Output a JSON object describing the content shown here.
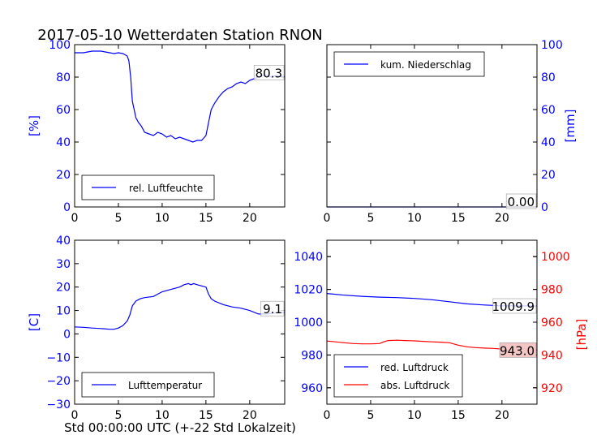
{
  "title": "2017-05-10 Wetterdaten Station RNON",
  "xlabel": "Std 00:00:00 UTC (+-22 Std Lokalzeit)",
  "colors": {
    "blue": "#0000ff",
    "red": "#ff0000",
    "label_box_red": "#f4c6c6"
  },
  "chart_data": [
    {
      "type": "line",
      "id": "humidity",
      "ylabel": "[%]",
      "ylim": [
        0,
        100
      ],
      "xlim": [
        0,
        24
      ],
      "yticks": [
        "0",
        "20",
        "40",
        "60",
        "80",
        "100"
      ],
      "xticks": [
        "0",
        "5",
        "10",
        "15",
        "20"
      ],
      "legend": "lower-left",
      "current_label": "80.3",
      "series": [
        {
          "name": "rel. Luftfeuchte",
          "color": "#0000ff",
          "x": [
            0,
            0.5,
            1,
            1.5,
            2,
            2.5,
            3,
            3.5,
            4,
            4.5,
            5,
            5.5,
            6,
            6.2,
            6.4,
            6.6,
            6.8,
            7,
            7.3,
            7.6,
            8,
            8.5,
            9,
            9.5,
            10,
            10.5,
            11,
            11.5,
            12,
            12.5,
            13,
            13.5,
            14,
            14.5,
            15,
            15.3,
            15.6,
            16,
            16.5,
            17,
            17.5,
            18,
            18.5,
            19,
            19.5,
            20,
            20.5,
            21,
            21.5,
            22,
            22.5,
            23,
            23.5,
            24
          ],
          "y": [
            95,
            95,
            95,
            95.5,
            96,
            96,
            96,
            95.5,
            95,
            94.5,
            95,
            94.5,
            93,
            90,
            80,
            65,
            60,
            55,
            52,
            50,
            46,
            45,
            44,
            46,
            45,
            43,
            44,
            42,
            43,
            42,
            41,
            40,
            41,
            41,
            44,
            52,
            60,
            64,
            68,
            71,
            73,
            74,
            76,
            77,
            76,
            78,
            79,
            80,
            81,
            81,
            80,
            81,
            80.5,
            80.3
          ]
        }
      ]
    },
    {
      "type": "line",
      "id": "precipitation",
      "ylabel": "[mm]",
      "ylim": [
        0,
        100
      ],
      "xlim": [
        0,
        24
      ],
      "yticks": [
        "0",
        "20",
        "40",
        "60",
        "80",
        "100"
      ],
      "xticks": [
        "0",
        "5",
        "10",
        "15",
        "20"
      ],
      "legend": "upper-left",
      "current_label": "0.00",
      "series": [
        {
          "name": "kum. Niederschlag",
          "color": "#0000ff",
          "x": [
            0,
            24
          ],
          "y": [
            0,
            0
          ]
        }
      ]
    },
    {
      "type": "line",
      "id": "temperature",
      "ylabel": "[C]",
      "ylim": [
        -30,
        40
      ],
      "xlim": [
        0,
        24
      ],
      "yticks": [
        "−30",
        "−20",
        "−10",
        "0",
        "10",
        "20",
        "30",
        "40"
      ],
      "xticks": [
        "0",
        "5",
        "10",
        "15",
        "20"
      ],
      "legend": "lower-left",
      "current_label": "9.1",
      "series": [
        {
          "name": "Lufttemperatur",
          "color": "#0000ff",
          "x": [
            0,
            1,
            2,
            3,
            4,
            4.5,
            5,
            5.5,
            6,
            6.3,
            6.6,
            7,
            7.5,
            8,
            9,
            10,
            11,
            12,
            12.5,
            13,
            13.3,
            13.6,
            14,
            14.5,
            15,
            15.3,
            15.6,
            16,
            17,
            18,
            19,
            20,
            21,
            22,
            23,
            24
          ],
          "y": [
            3,
            2.8,
            2.5,
            2.3,
            2,
            2,
            2.5,
            3.5,
            5.5,
            8,
            12,
            14,
            15,
            15.5,
            16,
            18,
            19,
            20,
            21,
            21.5,
            21,
            21.5,
            21,
            20.5,
            20,
            17,
            15,
            14,
            12.5,
            11.5,
            11,
            10,
            8.5,
            8.5,
            9,
            9.1
          ]
        }
      ]
    },
    {
      "type": "line",
      "id": "pressure",
      "ylabel": "[hPa]",
      "ylim_left": [
        950,
        1050
      ],
      "ylim_right": [
        910,
        1010
      ],
      "xlim": [
        0,
        24
      ],
      "yticks_left": [
        "960",
        "980",
        "1000",
        "1020",
        "1040"
      ],
      "yticks_right": [
        "920",
        "940",
        "960",
        "980",
        "1000"
      ],
      "xticks": [
        "0",
        "5",
        "10",
        "15",
        "20"
      ],
      "legend": "lower-left",
      "current_label_left": "1009.9",
      "current_label_right": "943.0",
      "series": [
        {
          "name": "red. Luftdruck",
          "axis": "left",
          "color": "#0000ff",
          "x": [
            0,
            2,
            4,
            6,
            8,
            10,
            12,
            14,
            16,
            18,
            20,
            22,
            24
          ],
          "y": [
            1017.5,
            1016.5,
            1015.8,
            1015.3,
            1015,
            1014.5,
            1013.7,
            1012.5,
            1011.2,
            1010.5,
            1010,
            1010,
            1009.9
          ]
        },
        {
          "name": "abs. Luftdruck",
          "axis": "right",
          "color": "#ff0000",
          "x": [
            0,
            1,
            2,
            3,
            4,
            5,
            6,
            6.5,
            7,
            8,
            9,
            10,
            11,
            12,
            13,
            14,
            15,
            16,
            17,
            18,
            19,
            20,
            21,
            22,
            23,
            24
          ],
          "y": [
            948.5,
            948,
            947.5,
            947,
            946.8,
            946.8,
            947,
            948,
            948.8,
            949,
            948.8,
            948.6,
            948.3,
            948,
            947.8,
            947.5,
            946,
            945,
            944.5,
            944.2,
            944,
            943.6,
            943.5,
            943.2,
            943.1,
            943.0
          ]
        }
      ]
    }
  ]
}
